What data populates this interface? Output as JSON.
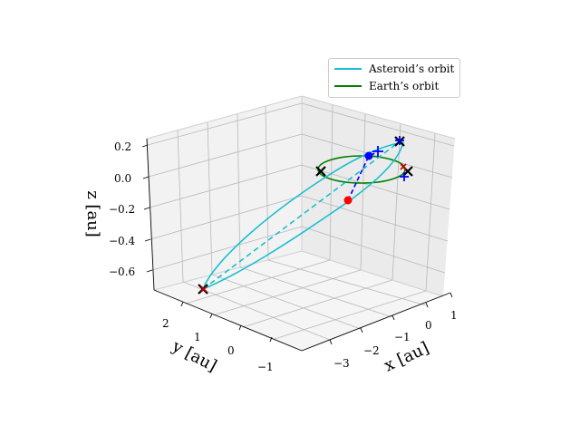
{
  "chart_data": {
    "type": "3d-line",
    "xlabel": "x [au]",
    "ylabel": "y [au]",
    "zlabel": "z [au]",
    "x_ticks": [
      "−3",
      "−2",
      "−1",
      "0",
      "1"
    ],
    "y_ticks": [
      "−1",
      "0",
      "1",
      "2"
    ],
    "z_ticks": [
      "0.2",
      "0.0",
      "−0.2",
      "−0.4",
      "−0.6"
    ],
    "xlim": [
      -3.8,
      1.4
    ],
    "ylim": [
      -1.5,
      2.9
    ],
    "zlim": [
      -0.75,
      0.25
    ],
    "series": [
      {
        "name": "Asteroid’s orbit",
        "color": "#17becf"
      },
      {
        "name": "Earth’s orbit",
        "color": "#008000"
      }
    ],
    "markers": {
      "black_x": [
        "Earth position 1",
        "Earth position 2",
        "Earth position 3",
        "Earth position 4"
      ],
      "red_x": [
        "Asteroid aphelion",
        "Asteroid node"
      ],
      "blue_plus": [
        "Projection 1",
        "Projection 2",
        "Projection 3"
      ],
      "points": [
        {
          "name": "blue point",
          "color": "#0000ff"
        },
        {
          "name": "red point",
          "color": "#ff0000"
        }
      ]
    }
  },
  "legend": {
    "asteroid": "Asteroid’s orbit",
    "earth": "Earth’s orbit"
  }
}
